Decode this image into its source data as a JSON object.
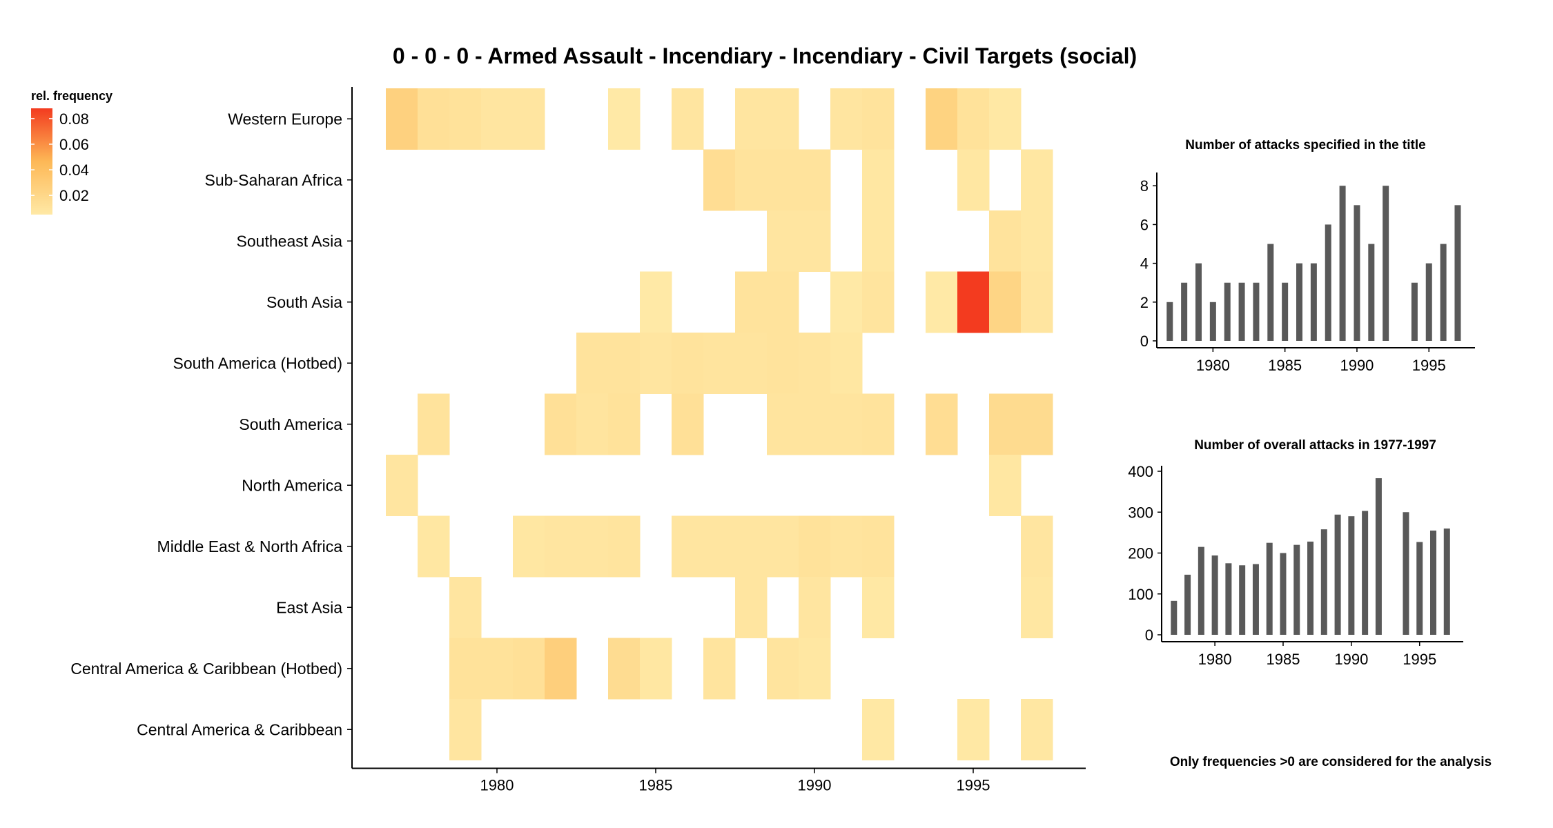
{
  "chart_data": [
    {
      "type": "heatmap",
      "title": "0 - 0 - 0 - Armed Assault - Incendiary - Incendiary - Civil Targets (social)",
      "legend_title": "rel. frequency",
      "legend_ticks": [
        "0.08",
        "0.06",
        "0.04",
        "0.02"
      ],
      "legend_tick_values": [
        0.08,
        0.06,
        0.04,
        0.02
      ],
      "color_low": "#ffe9a6",
      "color_high": "#f33b1f",
      "value_range": [
        0.005,
        0.088
      ],
      "x_ticks": [
        1980,
        1985,
        1990,
        1995
      ],
      "x_range": [
        1976.5,
        1997.5
      ],
      "regions": [
        "Western Europe",
        "Sub-Saharan Africa",
        "Southeast Asia",
        "South Asia",
        "South America (Hotbed)",
        "South America",
        "North America",
        "Middle East & North Africa",
        "East Asia",
        "Central America & Caribbean (Hotbed)",
        "Central America & Caribbean"
      ],
      "cells": [
        {
          "region": "Western Europe",
          "values": {
            "1977": 0.025,
            "1978": 0.013,
            "1979": 0.011,
            "1980": 0.008,
            "1981": 0.008,
            "1984": 0.005,
            "1986": 0.008,
            "1988": 0.008,
            "1989": 0.008,
            "1991": 0.008,
            "1992": 0.01,
            "1994": 0.024,
            "1995": 0.011,
            "1996": 0.006
          }
        },
        {
          "region": "Sub-Saharan Africa",
          "values": {
            "1987": 0.015,
            "1988": 0.01,
            "1989": 0.01,
            "1990": 0.01,
            "1992": 0.007,
            "1995": 0.007,
            "1997": 0.007
          }
        },
        {
          "region": "Southeast Asia",
          "values": {
            "1989": 0.008,
            "1990": 0.008,
            "1992": 0.007,
            "1996": 0.01,
            "1997": 0.007
          }
        },
        {
          "region": "South Asia",
          "values": {
            "1985": 0.005,
            "1988": 0.01,
            "1989": 0.01,
            "1991": 0.005,
            "1992": 0.009,
            "1994": 0.005,
            "1995": 0.088,
            "1996": 0.022,
            "1997": 0.008
          }
        },
        {
          "region": "South America (Hotbed)",
          "values": {
            "1983": 0.01,
            "1984": 0.01,
            "1985": 0.008,
            "1986": 0.01,
            "1987": 0.009,
            "1988": 0.009,
            "1989": 0.01,
            "1990": 0.009,
            "1991": 0.007
          }
        },
        {
          "region": "South America",
          "values": {
            "1978": 0.01,
            "1982": 0.013,
            "1983": 0.009,
            "1984": 0.011,
            "1986": 0.013,
            "1989": 0.009,
            "1990": 0.009,
            "1991": 0.009,
            "1992": 0.01,
            "1994": 0.015,
            "1996": 0.017,
            "1997": 0.017
          }
        },
        {
          "region": "North America",
          "values": {
            "1977": 0.008,
            "1996": 0.007
          }
        },
        {
          "region": "Middle East & North Africa",
          "values": {
            "1978": 0.007,
            "1981": 0.007,
            "1982": 0.008,
            "1983": 0.008,
            "1984": 0.009,
            "1986": 0.008,
            "1987": 0.008,
            "1988": 0.008,
            "1989": 0.008,
            "1990": 0.011,
            "1991": 0.009,
            "1992": 0.01,
            "1997": 0.008
          }
        },
        {
          "region": "East Asia",
          "values": {
            "1979": 0.008,
            "1988": 0.008,
            "1990": 0.008,
            "1992": 0.006,
            "1997": 0.007
          }
        },
        {
          "region": "Central America & Caribbean (Hotbed)",
          "values": {
            "1979": 0.011,
            "1980": 0.011,
            "1981": 0.013,
            "1982": 0.027,
            "1984": 0.016,
            "1985": 0.007,
            "1987": 0.009,
            "1989": 0.009,
            "1990": 0.007
          }
        },
        {
          "region": "Central America & Caribbean",
          "values": {
            "1979": 0.008,
            "1992": 0.006,
            "1995": 0.006,
            "1997": 0.007
          }
        }
      ]
    },
    {
      "type": "bar",
      "title": "Number of attacks specified in the title",
      "x": [
        1977,
        1978,
        1979,
        1980,
        1981,
        1982,
        1983,
        1984,
        1985,
        1986,
        1987,
        1988,
        1989,
        1990,
        1991,
        1992,
        1994,
        1995,
        1996,
        1997
      ],
      "values": [
        2,
        3,
        4,
        2,
        3,
        3,
        3,
        5,
        3,
        4,
        4,
        6,
        8,
        7,
        5,
        8,
        3,
        4,
        5,
        7
      ],
      "x_ticks": [
        1980,
        1985,
        1990,
        1995
      ],
      "y_ticks": [
        0,
        2,
        4,
        6,
        8
      ],
      "ylim": [
        0,
        8.4
      ],
      "xlim": [
        1976.1,
        1998.2
      ],
      "bar_color": "#595959"
    },
    {
      "type": "bar",
      "title": "Number of overall attacks in 1977-1997",
      "x": [
        1977,
        1978,
        1979,
        1980,
        1981,
        1982,
        1983,
        1984,
        1985,
        1986,
        1987,
        1988,
        1989,
        1990,
        1991,
        1992,
        1994,
        1995,
        1996,
        1997
      ],
      "values": [
        83,
        147,
        215,
        194,
        175,
        170,
        173,
        225,
        200,
        220,
        228,
        258,
        294,
        290,
        303,
        383,
        300,
        227,
        255,
        260
      ],
      "x_ticks": [
        1980,
        1985,
        1990,
        1995
      ],
      "y_ticks": [
        0,
        100,
        200,
        300,
        400
      ],
      "ylim": [
        0,
        400
      ],
      "xlim": [
        1976.1,
        1998.2
      ],
      "bar_color": "#595959"
    }
  ],
  "footnote": "Only frequencies >0 are considered for the analysis"
}
